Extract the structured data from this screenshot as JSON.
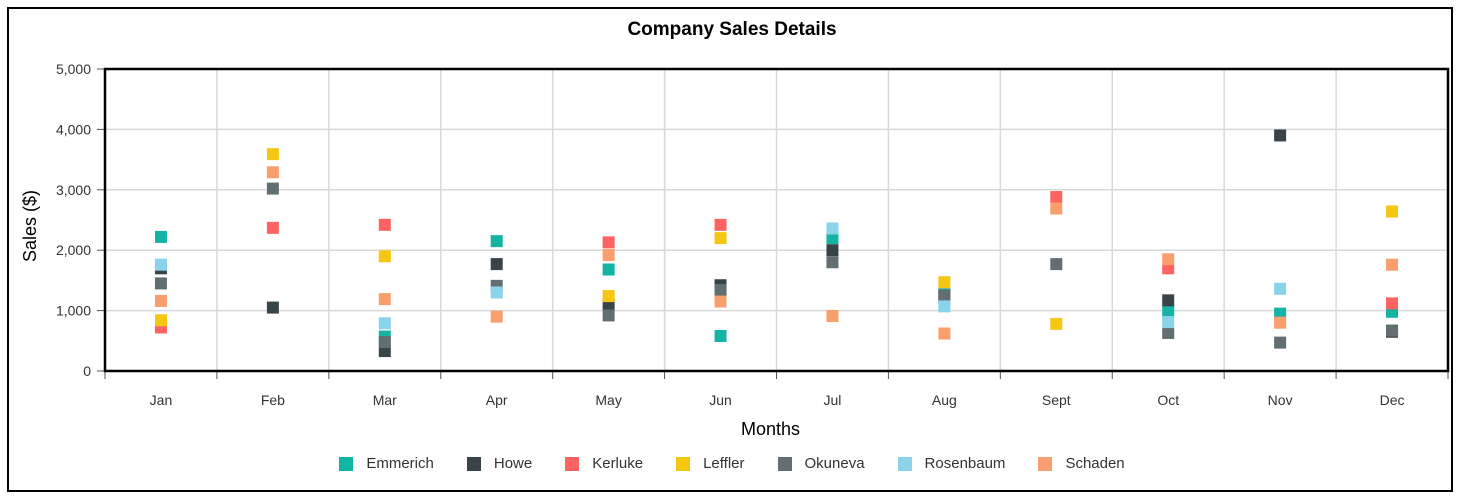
{
  "chart_data": {
    "type": "scatter",
    "title": "Company Sales Details",
    "xlabel": "Months",
    "ylabel": "Sales ($)",
    "categories": [
      "Jan",
      "Feb",
      "Mar",
      "Apr",
      "May",
      "Jun",
      "Jul",
      "Aug",
      "Sept",
      "Oct",
      "Nov",
      "Dec"
    ],
    "ylim": [
      0,
      5000
    ],
    "yticks": [
      0,
      1000,
      2000,
      3000,
      4000,
      5000
    ],
    "ytick_labels": [
      "0",
      "1,000",
      "2,000",
      "3,000",
      "4,000",
      "5,000"
    ],
    "grid": true,
    "legend_position": "bottom",
    "series": [
      {
        "name": "Emmerich",
        "color": "#15b3a4",
        "values": [
          2220,
          null,
          570,
          2150,
          1680,
          580,
          2200,
          1270,
          null,
          1000,
          950,
          980
        ]
      },
      {
        "name": "Howe",
        "color": "#384447",
        "values": [
          1700,
          1050,
          330,
          1770,
          1100,
          1420,
          2000,
          1250,
          null,
          1170,
          3900,
          650
        ]
      },
      {
        "name": "Kerluke",
        "color": "#fd6363",
        "values": [
          720,
          2370,
          2420,
          null,
          2130,
          2420,
          null,
          1200,
          2880,
          1700,
          null,
          1120
        ]
      },
      {
        "name": "Leffler",
        "color": "#f5c712",
        "values": [
          840,
          3590,
          1900,
          null,
          1240,
          2200,
          null,
          1470,
          780,
          null,
          null,
          2640
        ]
      },
      {
        "name": "Okuneva",
        "color": "#636e72",
        "values": [
          1450,
          3020,
          480,
          1410,
          920,
          1340,
          1800,
          1250,
          1770,
          630,
          470,
          670
        ]
      },
      {
        "name": "Rosenbaum",
        "color": "#89d4ea",
        "values": [
          1760,
          null,
          790,
          1300,
          null,
          null,
          2360,
          1070,
          null,
          810,
          1360,
          null
        ]
      },
      {
        "name": "Schaden",
        "color": "#f99f6e",
        "values": [
          1160,
          3290,
          1190,
          900,
          1920,
          1150,
          910,
          620,
          2690,
          1850,
          800,
          1760
        ]
      }
    ]
  }
}
